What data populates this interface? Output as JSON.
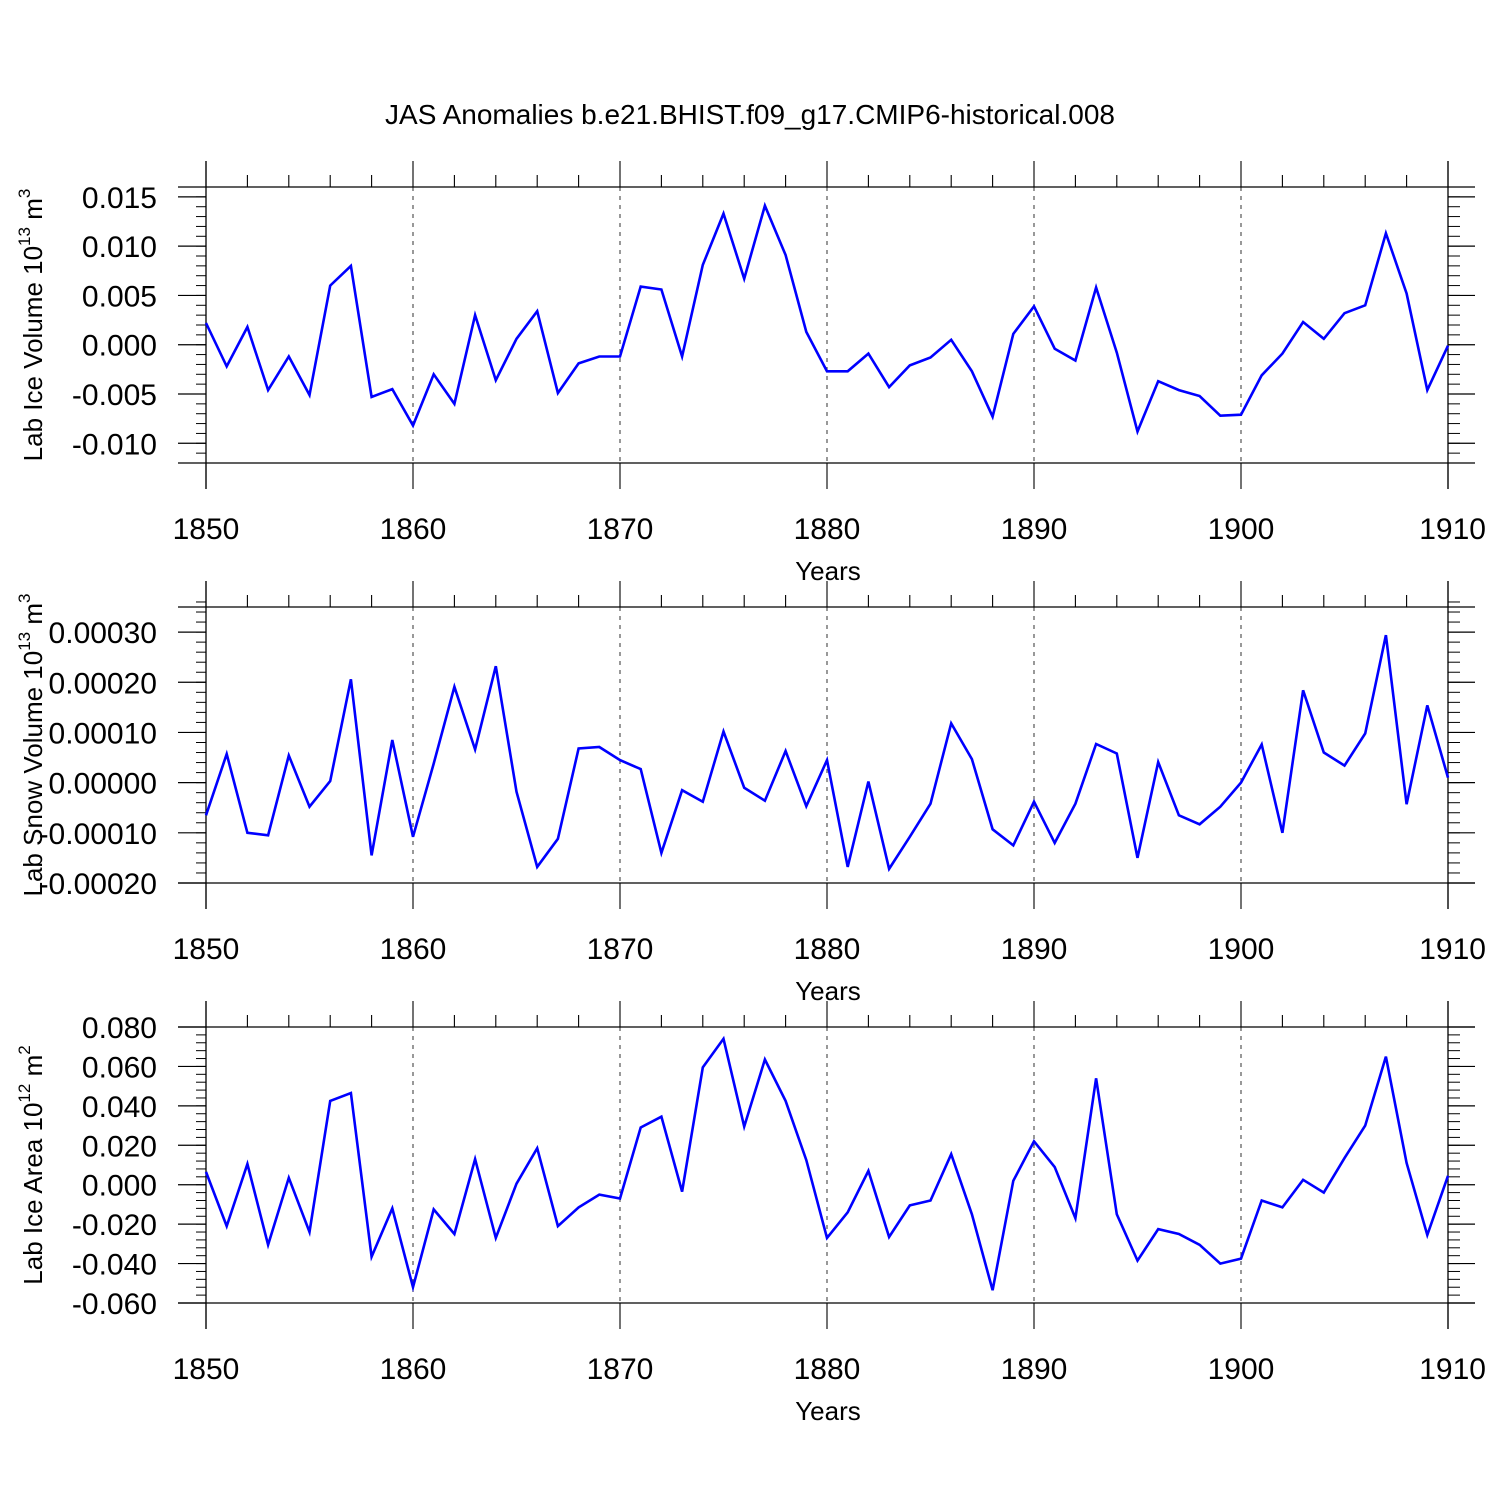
{
  "title": "JAS Anomalies b.e21.BHIST.f09_g17.CMIP6-historical.008",
  "line_color": "#0000ff",
  "grid_color": "#555555",
  "chart_data": [
    {
      "type": "line",
      "xlabel": "Years",
      "ylabel": "Lab Ice Volume 10",
      "ylabel_exp": "13",
      "ylabel_unit": "m",
      "ylabel_unit_exp": "3",
      "xlim": [
        1850,
        1910
      ],
      "ylim": [
        -0.012,
        0.016
      ],
      "xticks": [
        1850,
        1860,
        1870,
        1880,
        1890,
        1900,
        1910
      ],
      "yticks": [
        -0.01,
        -0.005,
        0.0,
        0.005,
        0.01,
        0.015
      ],
      "ytick_labels": [
        "-0.010",
        "-0.005",
        "0.000",
        "0.005",
        "0.010",
        "0.015"
      ],
      "yminor_step": 0.001,
      "grid": "vertical dashed at major x ticks",
      "x": [
        1850,
        1851,
        1852,
        1853,
        1854,
        1855,
        1856,
        1857,
        1858,
        1859,
        1860,
        1861,
        1862,
        1863,
        1864,
        1865,
        1866,
        1867,
        1868,
        1869,
        1870,
        1871,
        1872,
        1873,
        1874,
        1875,
        1876,
        1877,
        1878,
        1879,
        1880,
        1881,
        1882,
        1883,
        1884,
        1885,
        1886,
        1887,
        1888,
        1889,
        1890,
        1891,
        1892,
        1893,
        1894,
        1895,
        1896,
        1897,
        1898,
        1899,
        1900,
        1901,
        1902,
        1903,
        1904,
        1905,
        1906,
        1907,
        1908,
        1909,
        1910
      ],
      "values": [
        0.0022,
        -0.0022,
        0.0018,
        -0.0046,
        -0.0012,
        -0.0051,
        0.006,
        0.008,
        -0.0053,
        -0.0045,
        -0.0082,
        -0.003,
        -0.006,
        0.003,
        -0.0036,
        0.0006,
        0.0034,
        -0.0049,
        -0.0019,
        -0.0012,
        -0.0012,
        0.0059,
        0.0056,
        -0.0012,
        0.0081,
        0.0133,
        0.0067,
        0.0141,
        0.0091,
        0.0013,
        -0.0027,
        -0.0027,
        -0.0009,
        -0.0043,
        -0.0021,
        -0.0013,
        0.0005,
        -0.0027,
        -0.0073,
        0.0011,
        0.0039,
        -0.0004,
        -0.0016,
        0.0058,
        -0.0008,
        -0.0088,
        -0.0037,
        -0.0046,
        -0.0052,
        -0.0072,
        -0.0071,
        -0.0031,
        -0.0009,
        0.0023,
        0.0006,
        0.0032,
        0.004,
        0.0113,
        0.0052,
        -0.0046,
        -0.0001
      ]
    },
    {
      "type": "line",
      "xlabel": "Years",
      "ylabel": "Lab Snow Volume 10",
      "ylabel_exp": "13",
      "ylabel_unit": "m",
      "ylabel_unit_exp": "3",
      "xlim": [
        1850,
        1910
      ],
      "ylim": [
        -0.0002,
        0.00035
      ],
      "xticks": [
        1850,
        1860,
        1870,
        1880,
        1890,
        1900,
        1910
      ],
      "yticks": [
        -0.0002,
        -0.0001,
        0.0,
        0.0001,
        0.0002,
        0.0003
      ],
      "ytick_labels": [
        "-0.00020",
        "-0.00010",
        "0.00000",
        "0.00010",
        "0.00020",
        "0.00030"
      ],
      "yminor_step": 2e-05,
      "grid": "vertical dashed at major x ticks",
      "x": [
        1850,
        1851,
        1852,
        1853,
        1854,
        1855,
        1856,
        1857,
        1858,
        1859,
        1860,
        1861,
        1862,
        1863,
        1864,
        1865,
        1866,
        1867,
        1868,
        1869,
        1870,
        1871,
        1872,
        1873,
        1874,
        1875,
        1876,
        1877,
        1878,
        1879,
        1880,
        1881,
        1882,
        1883,
        1884,
        1885,
        1886,
        1887,
        1888,
        1889,
        1890,
        1891,
        1892,
        1893,
        1894,
        1895,
        1896,
        1897,
        1898,
        1899,
        1900,
        1901,
        1902,
        1903,
        1904,
        1905,
        1906,
        1907,
        1908,
        1909,
        1910
      ],
      "values": [
        -6.5e-05,
        5.7e-05,
        -0.0001,
        -0.000105,
        5.4e-05,
        -4.8e-05,
        3e-06,
        0.000206,
        -0.000145,
        8.5e-05,
        -0.000108,
        3.8e-05,
        0.000191,
        6.6e-05,
        0.000232,
        -1.8e-05,
        -0.000168,
        -0.000112,
        6.8e-05,
        7.1e-05,
        4.5e-05,
        2.7e-05,
        -0.00014,
        -1.5e-05,
        -3.8e-05,
        0.000102,
        -1e-05,
        -3.6e-05,
        6.3e-05,
        -4.7e-05,
        4.5e-05,
        -0.000168,
        2e-06,
        -0.000172,
        -0.000108,
        -4.2e-05,
        0.000118,
        4.7e-05,
        -9.3e-05,
        -0.000125,
        -3.8e-05,
        -0.00012,
        -4.2e-05,
        7.7e-05,
        5.8e-05,
        -0.00015,
        4.1e-05,
        -6.5e-05,
        -8.3e-05,
        -4.8e-05,
        0.0,
        7.6e-05,
        -0.0001,
        0.000184,
        6e-05,
        3.4e-05,
        9.8e-05,
        0.000294,
        -4.3e-05,
        0.000154,
        1e-05
      ]
    },
    {
      "type": "line",
      "xlabel": "Years",
      "ylabel": "Lab Ice Area 10",
      "ylabel_exp": "12",
      "ylabel_unit": "m",
      "ylabel_unit_exp": "2",
      "xlim": [
        1850,
        1910
      ],
      "ylim": [
        -0.06,
        0.08
      ],
      "xticks": [
        1850,
        1860,
        1870,
        1880,
        1890,
        1900,
        1910
      ],
      "yticks": [
        -0.06,
        -0.04,
        -0.02,
        0.0,
        0.02,
        0.04,
        0.06,
        0.08
      ],
      "ytick_labels": [
        "-0.060",
        "-0.040",
        "-0.020",
        "0.000",
        "0.020",
        "0.040",
        "0.060",
        "0.080"
      ],
      "yminor_step": 0.004,
      "grid": "vertical dashed at major x ticks",
      "x": [
        1850,
        1851,
        1852,
        1853,
        1854,
        1855,
        1856,
        1857,
        1858,
        1859,
        1860,
        1861,
        1862,
        1863,
        1864,
        1865,
        1866,
        1867,
        1868,
        1869,
        1870,
        1871,
        1872,
        1873,
        1874,
        1875,
        1876,
        1877,
        1878,
        1879,
        1880,
        1881,
        1882,
        1883,
        1884,
        1885,
        1886,
        1887,
        1888,
        1889,
        1890,
        1891,
        1892,
        1893,
        1894,
        1895,
        1896,
        1897,
        1898,
        1899,
        1900,
        1901,
        1902,
        1903,
        1904,
        1905,
        1906,
        1907,
        1908,
        1909,
        1910
      ],
      "values": [
        0.0065,
        -0.021,
        0.0105,
        -0.0305,
        0.0035,
        -0.024,
        0.0425,
        0.0465,
        -0.0365,
        -0.012,
        -0.052,
        -0.0125,
        -0.025,
        0.013,
        -0.027,
        0.0005,
        0.0185,
        -0.021,
        -0.0115,
        -0.005,
        -0.007,
        0.029,
        0.0345,
        -0.0035,
        0.0595,
        0.074,
        0.0295,
        0.0635,
        0.0425,
        0.0125,
        -0.027,
        -0.014,
        0.007,
        -0.0265,
        -0.0105,
        -0.008,
        0.0155,
        -0.015,
        -0.0535,
        0.002,
        0.022,
        0.009,
        -0.017,
        0.054,
        -0.015,
        -0.0385,
        -0.0225,
        -0.025,
        -0.0305,
        -0.04,
        -0.0375,
        -0.008,
        -0.0115,
        0.0025,
        -0.004,
        0.0135,
        0.03,
        0.065,
        0.011,
        -0.0255,
        0.0045
      ]
    }
  ]
}
